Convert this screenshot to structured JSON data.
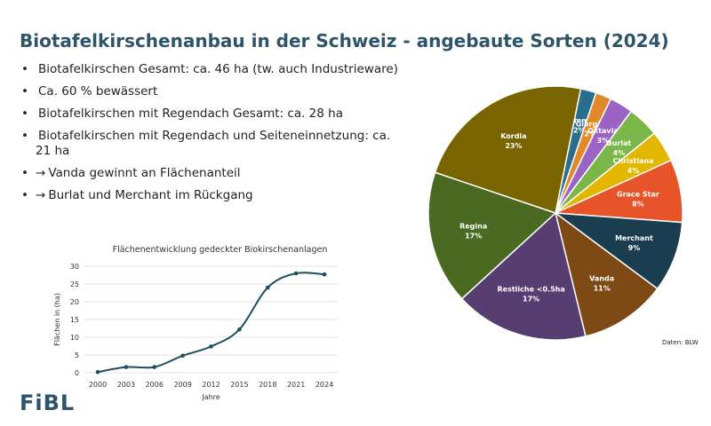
{
  "slide": {
    "title": "Biotafelkirschenanbau in der Schweiz - angebaute Sorten (2024)",
    "bullets": [
      {
        "arrow": "",
        "text": "Biotafelkirschen Gesamt: ca. 46 ha (tw. auch Industrieware)"
      },
      {
        "arrow": "",
        "text": "Ca. 60 % bewässert"
      },
      {
        "arrow": "",
        "text": "Biotafelkirschen mit Regendach Gesamt: ca. 28 ha"
      },
      {
        "arrow": "",
        "text": "Biotafelkirschen mit Regendach und Seiteneinnetzung: ca. 21 ha"
      },
      {
        "arrow": "→",
        "text": "Vanda gewinnt an Flächenanteil"
      },
      {
        "arrow": "→",
        "text": "Burlat und Merchant im Rückgang"
      }
    ],
    "source": "Daten: BLW",
    "logo": "FiBL"
  },
  "chart_data": [
    {
      "type": "line",
      "title": "Flächenentwicklung gedeckter Biokirschenanlagen",
      "xlabel": "Jahre",
      "ylabel": "Flächen in (ha)",
      "x": [
        "2000",
        "2003",
        "2006",
        "2009",
        "2012",
        "2015",
        "2018",
        "2021",
        "2024"
      ],
      "series": [
        {
          "name": "",
          "values": [
            0.2,
            1.6,
            1.6,
            4.8,
            7.4,
            12.2,
            24,
            28,
            27.7
          ],
          "color": "#1f4e5f"
        }
      ],
      "ylim": [
        0,
        30
      ],
      "yticks": [
        0,
        5,
        10,
        15,
        20,
        25,
        30
      ],
      "grid": true,
      "smooth": true
    },
    {
      "type": "pie",
      "slices": [
        {
          "label": "Summit",
          "value": 2,
          "display": "2%",
          "color": "#2a6d8c"
        },
        {
          "label": "Giorgia",
          "value": 2,
          "display": "2%",
          "color": "#e08a2c"
        },
        {
          "label": "Oktavia",
          "value": 3,
          "display": "3%",
          "color": "#9b63c4"
        },
        {
          "label": "Burlat",
          "value": 4,
          "display": "4%",
          "color": "#7ab648"
        },
        {
          "label": "Christiana",
          "value": 4,
          "display": "4%",
          "color": "#e3b600"
        },
        {
          "label": "Grace Star",
          "value": 8,
          "display": "8%",
          "color": "#e8542a"
        },
        {
          "label": "Merchant",
          "value": 9,
          "display": "9%",
          "color": "#1b3d50"
        },
        {
          "label": "Vanda",
          "value": 11,
          "display": "11%",
          "color": "#7d4a16"
        },
        {
          "label": "Restliche <0.5ha",
          "value": 17,
          "display": "17%",
          "color": "#563e70"
        },
        {
          "label": "Regina",
          "value": 17,
          "display": "17%",
          "color": "#4a6a22"
        },
        {
          "label": "Kordia",
          "value": 23,
          "display": "23%",
          "color": "#7a6400"
        }
      ]
    }
  ]
}
